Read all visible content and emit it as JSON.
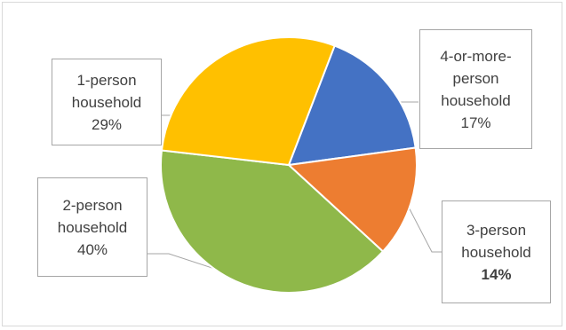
{
  "chart_data": {
    "type": "pie",
    "title": "",
    "slices": [
      {
        "name": "4-or-more-person household",
        "label_lines": [
          "4-or-more-",
          "person",
          "household"
        ],
        "pct_label": "17%",
        "value": 17,
        "color": "#4472c4",
        "pct_bold": false
      },
      {
        "name": "3-person household",
        "label_lines": [
          "3-person",
          "household"
        ],
        "pct_label": "14%",
        "value": 14,
        "color": "#ed7d31",
        "pct_bold": true
      },
      {
        "name": "2-person household",
        "label_lines": [
          "2-person",
          "household"
        ],
        "pct_label": "40%",
        "value": 40,
        "color": "#8fb84a",
        "pct_bold": false
      },
      {
        "name": "1-person household",
        "label_lines": [
          "1-person",
          "household"
        ],
        "pct_label": "29%",
        "value": 29,
        "color": "#ffc000",
        "pct_bold": false
      }
    ],
    "legend": "none",
    "label_style": "callout"
  }
}
